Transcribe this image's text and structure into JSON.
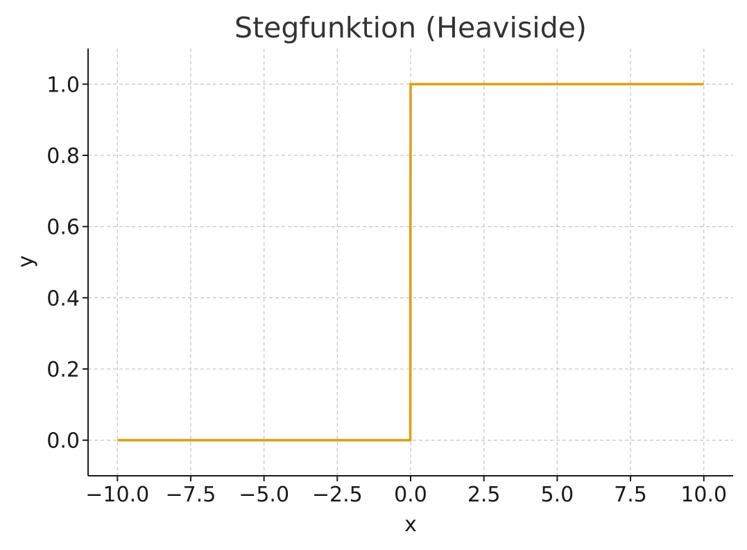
{
  "chart_data": {
    "type": "line",
    "title": "Stegfunktion (Heaviside)",
    "xlabel": "x",
    "ylabel": "y",
    "xlim": [
      -11,
      11
    ],
    "ylim": [
      -0.1,
      1.1
    ],
    "grid": true,
    "x_ticks": [
      -10.0,
      -7.5,
      -5.0,
      -2.5,
      0.0,
      2.5,
      5.0,
      7.5,
      10.0
    ],
    "x_tick_labels": [
      "−10.0",
      "−7.5",
      "−5.0",
      "−2.5",
      "0.0",
      "2.5",
      "5.0",
      "7.5",
      "10.0"
    ],
    "y_ticks": [
      0.0,
      0.2,
      0.4,
      0.6,
      0.8,
      1.0
    ],
    "y_tick_labels": [
      "0.0",
      "0.2",
      "0.4",
      "0.6",
      "0.8",
      "1.0"
    ],
    "series": [
      {
        "color": "#E0A014",
        "x": [
          -10,
          -0.01,
          0,
          10
        ],
        "y": [
          0,
          0,
          1,
          1
        ]
      }
    ]
  }
}
